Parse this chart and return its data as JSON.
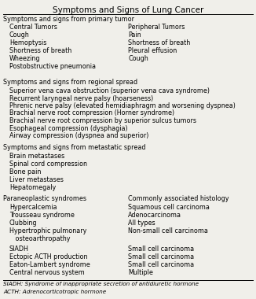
{
  "title": "Symptoms and Signs of Lung Cancer",
  "title_fontsize": 7.5,
  "body_fontsize": 5.8,
  "small_fontsize": 5.2,
  "bg_color": "#f0efea",
  "text_color": "#000000",
  "line_color": "#000000",
  "primary_header": "Symptoms and signs from primary tumor",
  "primary_left": [
    "Central Tumors",
    "Cough",
    "Hemoptysis",
    "Shortness of breath",
    "Wheezing",
    "Postobstructive pneumonia"
  ],
  "primary_right": [
    "Peripheral Tumors",
    "Pain",
    "Shortness of breath",
    "Pleural effusion",
    "Cough"
  ],
  "regional_header": "Symptoms and signs from regional spread",
  "regional_items": [
    "Superior vena cava obstruction (superior vena cava syndrome)",
    "Recurrent laryngeal nerve palsy (hoarseness)",
    "Phrenic nerve palsy (elevated hemidiaphragm and worsening dyspnea)",
    "Brachial nerve root compression (Horner syndrome)",
    "Brachial nerve root compression by superior sulcus tumors",
    "Esophageal compression (dysphagia)",
    "Airway compression (dyspnea and superior)"
  ],
  "metastatic_header": "Symptoms and signs from metastatic spread",
  "metastatic_items": [
    "Brain metastases",
    "Spinal cord compression",
    "Bone pain",
    "Liver metastases",
    "Hepatomegaly"
  ],
  "para_header_left": "Paraneoplastic syndromes",
  "para_header_right": "Commonly associated histology",
  "para_left1": [
    "Hypercalcemia",
    "Trousseau syndrome",
    "Clubbing",
    "Hypertrophic pulmonary",
    "   osteoarthropathy"
  ],
  "para_right1": [
    "Squamous cell carcinoma",
    "Adenocarcinoma",
    "All types",
    "Non-small cell carcinoma",
    ""
  ],
  "para_left2": [
    "SIADH",
    "Ectopic ACTH production",
    "Eaton-Lambert syndrome",
    "Central nervous system"
  ],
  "para_right2": [
    "Small cell carcinoma",
    "Small cell carcinoma",
    "Small cell carcinoma",
    "Multiple"
  ],
  "footer_lines": [
    "SIADH: Syndrome of inappropriate secretion of antidiuretic hormone",
    "ACTH: Adrenocorticotropic hormone"
  ]
}
